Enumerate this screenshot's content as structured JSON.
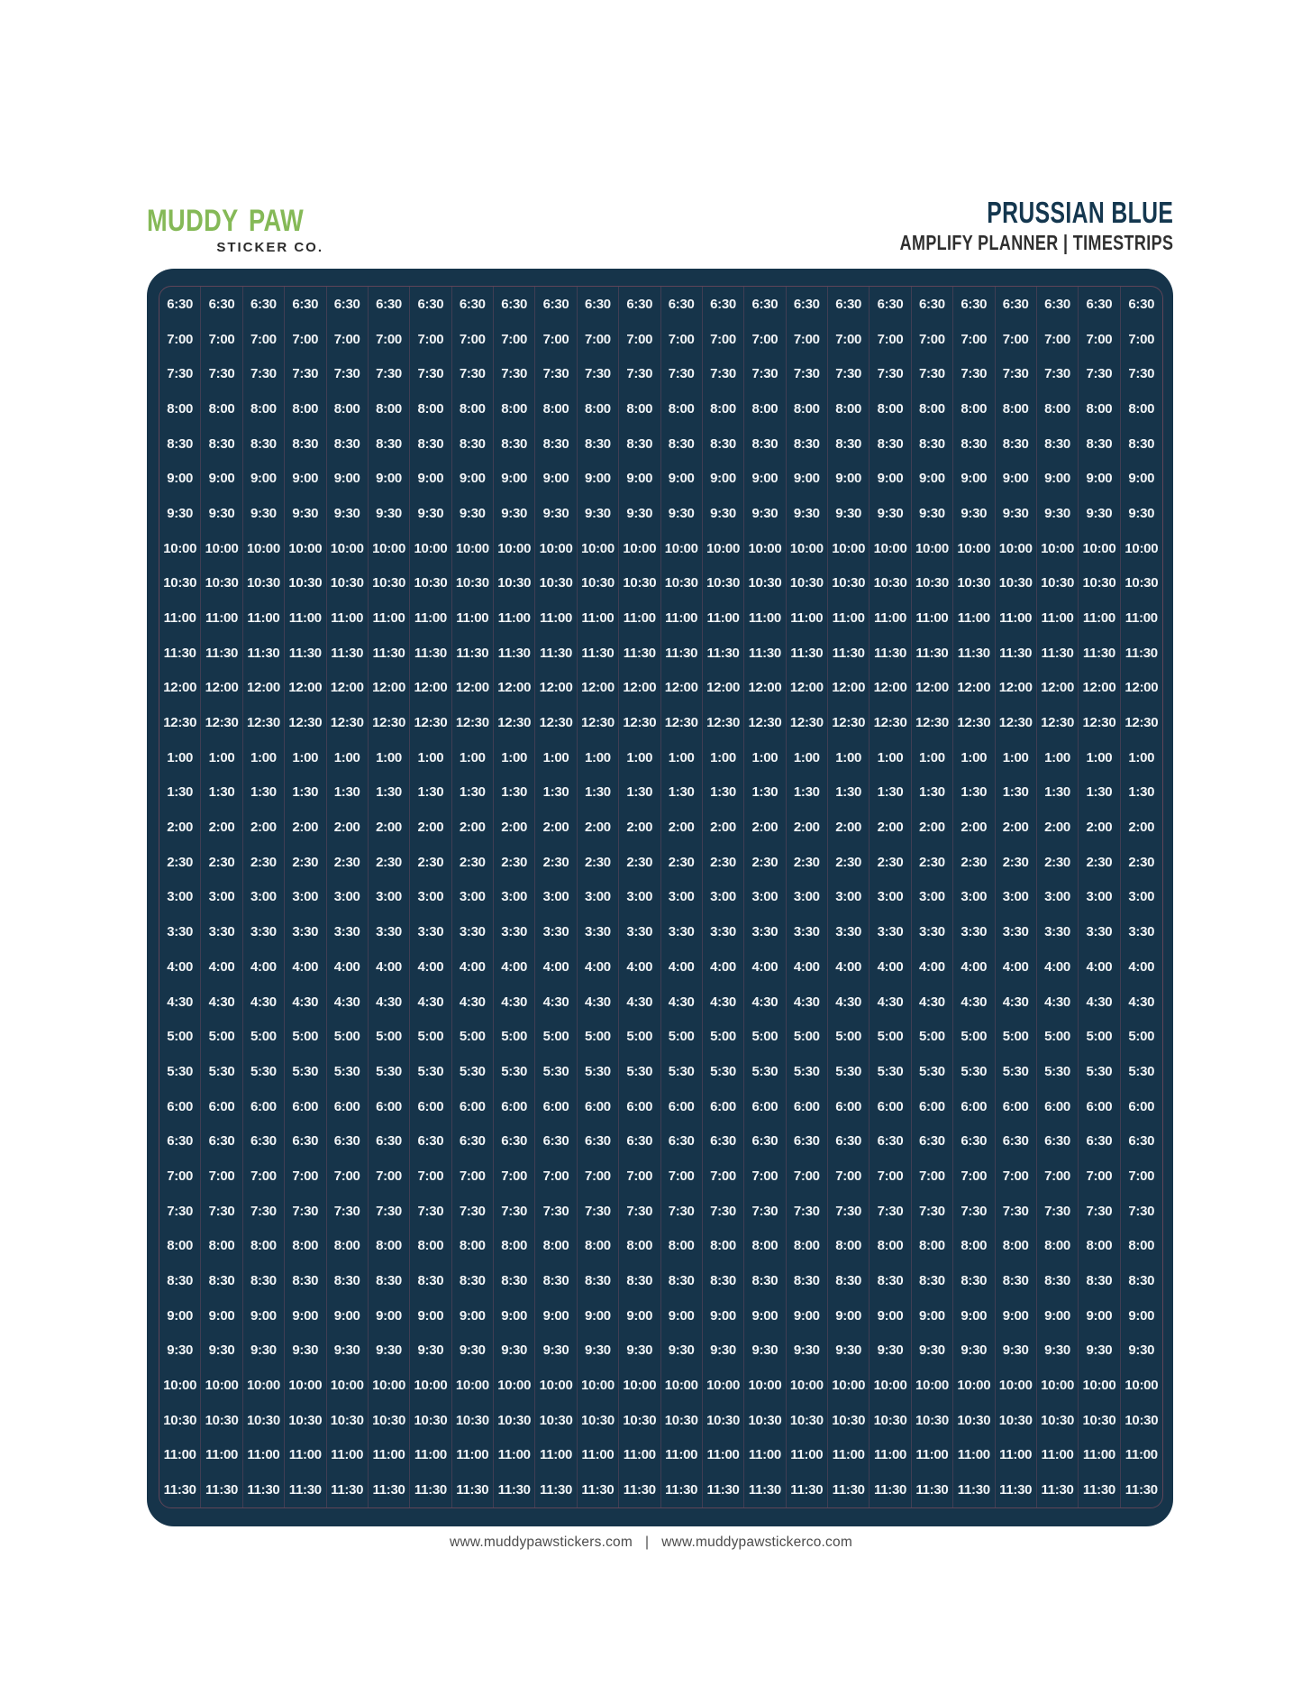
{
  "brand": {
    "word1": "MUDDY",
    "word2": "PAW",
    "subtext": "STICKER CO.",
    "paw_icon": "paw-print-icon",
    "logo_green": "#85B957",
    "paw_brown": "#4F2E1D"
  },
  "header": {
    "title": "PRUSSIAN BLUE",
    "subtitle": "AMPLIFY PLANNER | TIMESTRIPS"
  },
  "colors": {
    "sheet_background": "#16344A",
    "grid_line": "rgba(175,90,110,0.28)",
    "inner_border": "rgba(205,95,110,0.40)",
    "time_text": "#F2F5F7",
    "title_navy": "#14374F",
    "subtitle_dark": "#2F2F2F",
    "footer_gray": "#4C4C4C",
    "logo_green": "#85B957",
    "paw_brown": "#4F2E1D"
  },
  "sheet": {
    "description": "Prussian Blue timestrip sticker sheet grid",
    "columns": 24,
    "rows": 35,
    "times": [
      "6:30",
      "7:00",
      "7:30",
      "8:00",
      "8:30",
      "9:00",
      "9:30",
      "10:00",
      "10:30",
      "11:00",
      "11:30",
      "12:00",
      "12:30",
      "1:00",
      "1:30",
      "2:00",
      "2:30",
      "3:00",
      "3:30",
      "4:00",
      "4:30",
      "5:00",
      "5:30",
      "6:00",
      "6:30",
      "7:00",
      "7:30",
      "8:00",
      "8:30",
      "9:00",
      "9:30",
      "10:00",
      "10:30",
      "11:00",
      "11:30"
    ]
  },
  "footer": {
    "site1": "www.muddypawstickers.com",
    "separator": "|",
    "site2": "www.muddypawstickerco.com"
  }
}
